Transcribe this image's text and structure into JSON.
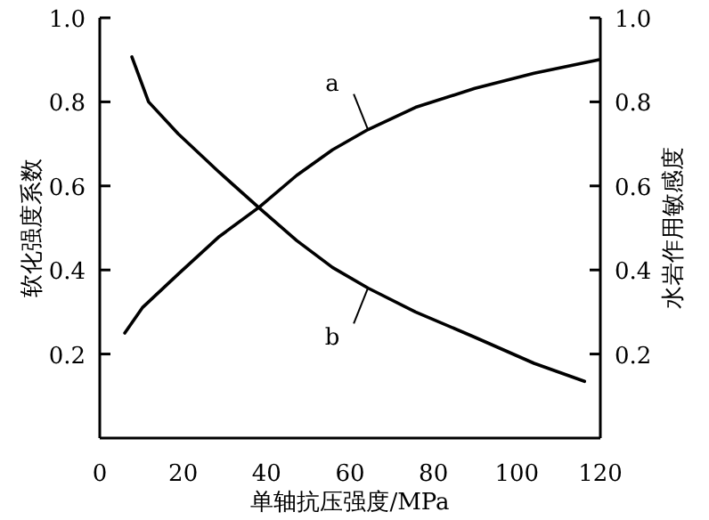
{
  "chart_data": {
    "type": "line",
    "xlabel": "单轴抗压强度/MPa",
    "ylabel": "软化强度系数",
    "y2label": "水岩作用敏感度",
    "xlim": [
      0,
      120
    ],
    "xticks": [
      0,
      20,
      40,
      60,
      80,
      100,
      120
    ],
    "ylim": [
      0,
      1
    ],
    "yticks": [
      0.2,
      0.4,
      0.6,
      0.8,
      {
        "value": 1,
        "label": "1.0"
      }
    ],
    "y2lim": [
      0,
      1
    ],
    "y2ticks": [
      0.2,
      0.4,
      0.6,
      0.8,
      {
        "value": 1,
        "label": "1.0"
      }
    ],
    "grid": false,
    "marker": "none",
    "line_style": "solid",
    "series": [
      {
        "name": "a",
        "color": "#000000",
        "x": [
          6,
          10.2,
          18.8,
          28.7,
          38.3,
          47.2,
          55.8,
          64.3,
          75.7,
          89.9,
          104.1,
          119.5
        ],
        "values": [
          0.25,
          0.31,
          0.39,
          0.48,
          0.55,
          0.625,
          0.686,
          0.734,
          0.787,
          0.832,
          0.868,
          0.9
        ]
      },
      {
        "name": "b",
        "color": "#000000",
        "x": [
          7.7,
          11.7,
          18.8,
          28.7,
          38.3,
          47.2,
          55.8,
          64.3,
          75.7,
          89.9,
          104.1,
          116.2
        ],
        "values": [
          0.907,
          0.8,
          0.724,
          0.632,
          0.547,
          0.47,
          0.406,
          0.357,
          0.3,
          0.24,
          0.178,
          0.135
        ]
      }
    ]
  }
}
